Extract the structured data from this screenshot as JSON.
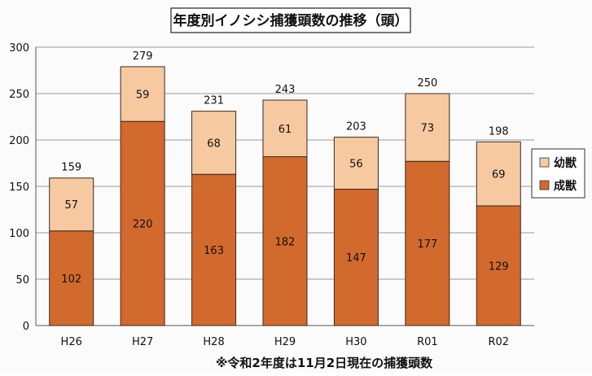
{
  "chart_data": {
    "type": "bar",
    "stacked": true,
    "title": "年度別イノシシ捕獲頭数の推移（頭）",
    "note": "※令和2年度は11月2日現在の捕獲頭数",
    "categories": [
      "H26",
      "H27",
      "H28",
      "H29",
      "H30",
      "R01",
      "R02"
    ],
    "series": [
      {
        "name": "成獣",
        "color": "#d2692d",
        "values": [
          102,
          220,
          163,
          182,
          147,
          177,
          129
        ]
      },
      {
        "name": "幼獣",
        "color": "#f6c9a1",
        "values": [
          57,
          59,
          68,
          61,
          56,
          73,
          69
        ]
      }
    ],
    "totals": [
      159,
      279,
      231,
      243,
      203,
      250,
      198
    ],
    "ylim": [
      0,
      300
    ],
    "yticks": [
      0,
      50,
      100,
      150,
      200,
      250,
      300
    ],
    "grid": true,
    "legend": "right"
  }
}
